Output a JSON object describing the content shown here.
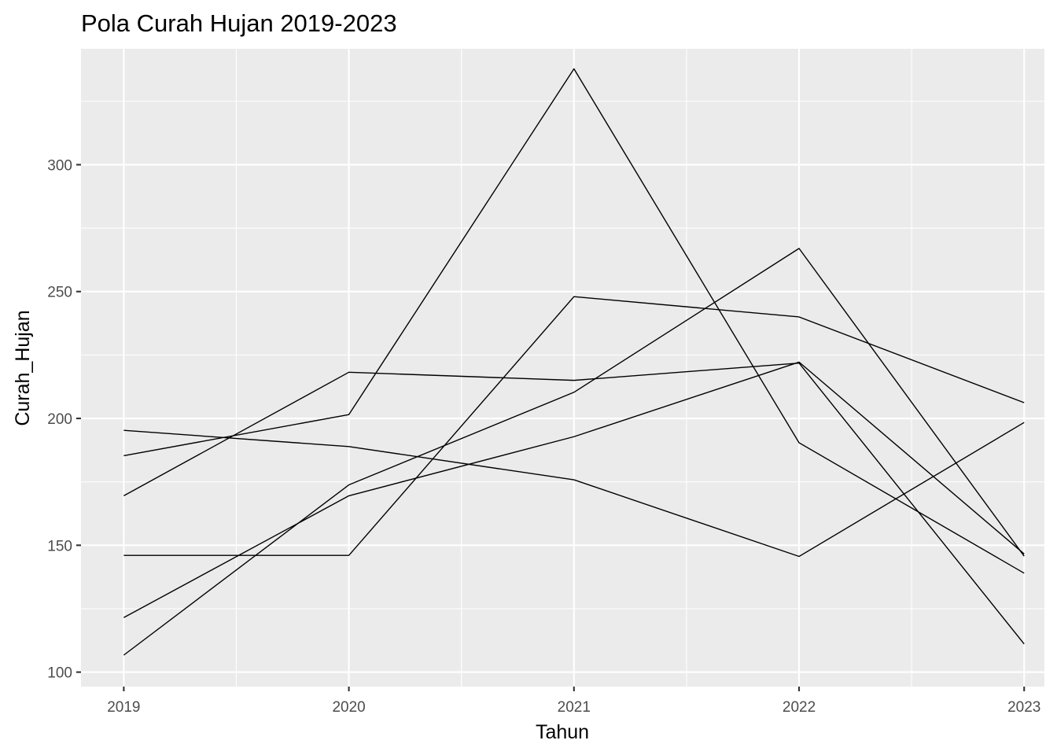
{
  "chart_data": {
    "type": "line",
    "title": "Pola Curah Hujan 2019-2023",
    "xlabel": "Tahun",
    "ylabel": "Curah_Hujan",
    "x": [
      2019,
      2020,
      2021,
      2022,
      2023
    ],
    "x_tick_labels": [
      "2019",
      "2020",
      "2021",
      "2022",
      "2023"
    ],
    "y_ticks": [
      100,
      150,
      200,
      250,
      300
    ],
    "y_tick_labels": [
      "100",
      "150",
      "200",
      "250",
      "300"
    ],
    "xlim": [
      2018.81,
      2023.09
    ],
    "ylim": [
      94.3,
      345.7
    ],
    "grid": true,
    "legend": "none",
    "colors": {
      "panel_background": "#ebebeb",
      "grid": "#ffffff",
      "line": "#000000",
      "tick_label": "#4d4d4d"
    },
    "series": [
      {
        "values": [
          185.3,
          201.5,
          337.8,
          190.4,
          139.0
        ]
      },
      {
        "values": [
          195.3,
          188.9,
          175.8,
          145.6,
          198.4
        ]
      },
      {
        "values": [
          169.5,
          218.2,
          215.0,
          221.8,
          111.1
        ]
      },
      {
        "values": [
          146.0,
          146.0,
          248.0,
          240.0,
          206.2
        ]
      },
      {
        "values": [
          121.5,
          169.5,
          192.8,
          222.2,
          146.6
        ]
      },
      {
        "values": [
          106.7,
          173.8,
          210.3,
          267.0,
          145.7
        ]
      }
    ]
  }
}
